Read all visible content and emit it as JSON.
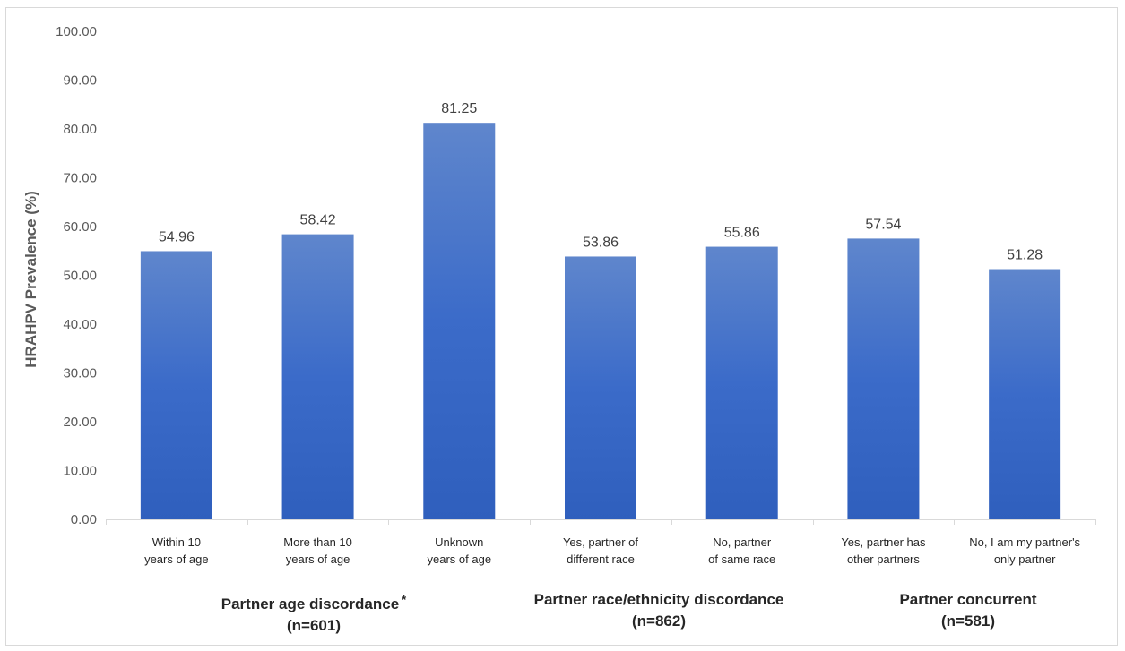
{
  "chart_data": {
    "type": "bar",
    "ylabel": "HRAHPV Prevalence (%)",
    "ylim": [
      0,
      100
    ],
    "yticks": [
      "0.00",
      "10.00",
      "20.00",
      "30.00",
      "40.00",
      "50.00",
      "60.00",
      "70.00",
      "80.00",
      "90.00",
      "100.00"
    ],
    "categories": [
      [
        "Within 10",
        "years of age"
      ],
      [
        "More than 10",
        "years of age"
      ],
      [
        "Unknown",
        "years of age"
      ],
      [
        "Yes, partner of",
        "different race"
      ],
      [
        "No, partner",
        "of same race"
      ],
      [
        "Yes, partner has",
        "other partners"
      ],
      [
        "No, I am my partner's",
        "only partner"
      ]
    ],
    "values": [
      54.96,
      58.42,
      81.25,
      53.86,
      55.86,
      57.54,
      51.28
    ],
    "value_labels": [
      "54.96",
      "58.42",
      "81.25",
      "53.86",
      "55.86",
      "57.54",
      "51.28"
    ],
    "bar_color": "#4472c4",
    "grid": false,
    "groups": [
      {
        "name": "Partner age discordance",
        "marker": "*",
        "n": "(n=601)"
      },
      {
        "name": "Partner race/ethnicity discordance",
        "marker": "",
        "n": "(n=862)"
      },
      {
        "name": "Partner concurrent",
        "marker": "",
        "n": "(n=581)"
      }
    ]
  }
}
